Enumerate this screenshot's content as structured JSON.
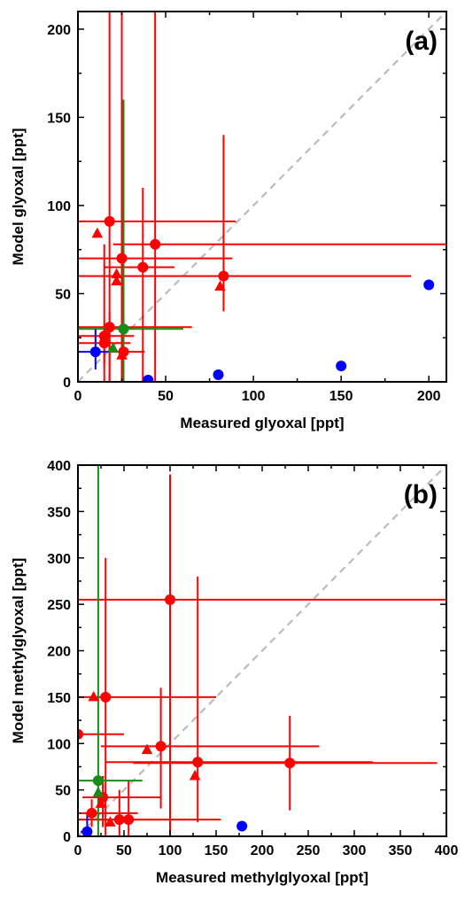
{
  "colors": {
    "red": "#ff0000",
    "green": "#1a8a1a",
    "blue": "#0000ff",
    "diag": "#bbbbbb"
  },
  "chart_data": [
    {
      "type": "scatter",
      "panel_label": "(a)",
      "xlabel": "Measured glyoxal [ppt]",
      "ylabel": "Model glyoxal [ppt]",
      "xlim": [
        0,
        210
      ],
      "ylim": [
        0,
        210
      ],
      "xticks": [
        0,
        50,
        100,
        150,
        200
      ],
      "yticks": [
        0,
        50,
        100,
        150,
        200
      ],
      "xticklabels": [
        "0",
        "50",
        "100",
        "150",
        "200"
      ],
      "yticklabels": [
        "0",
        "50",
        "100",
        "150",
        "200"
      ],
      "diagonal": "1:1 dashed line",
      "grid": false,
      "series": [
        {
          "color": "red",
          "marker": "circle",
          "points": [
            {
              "x": 18,
              "y": 91,
              "xerr": [
                0,
                90
              ],
              "yerr": [
                0,
                210
              ]
            },
            {
              "x": 44,
              "y": 78,
              "xerr": [
                20,
                210
              ],
              "yerr": [
                0,
                210
              ]
            },
            {
              "x": 25,
              "y": 70,
              "xerr": [
                0,
                88
              ],
              "yerr": [
                0,
                210
              ]
            },
            {
              "x": 37,
              "y": 65,
              "xerr": [
                15,
                55
              ],
              "yerr": [
                0,
                110
              ]
            },
            {
              "x": 83,
              "y": 60,
              "xerr": [
                0,
                190
              ],
              "yerr": [
                40,
                140
              ]
            },
            {
              "x": 18,
              "y": 31,
              "xerr": [
                0,
                65
              ],
              "yerr": [
                0,
                40
              ]
            },
            {
              "x": 15,
              "y": 26,
              "xerr": [
                0,
                32
              ],
              "yerr": [
                0,
                78
              ]
            },
            {
              "x": 15,
              "y": 22,
              "xerr": [
                0,
                30
              ],
              "yerr": [
                10,
                30
              ]
            },
            {
              "x": 26,
              "y": 17,
              "xerr": [
                18,
                38
              ],
              "yerr": [
                0,
                30
              ]
            }
          ]
        },
        {
          "color": "red",
          "marker": "triangle",
          "points": [
            {
              "x": 11,
              "y": 84
            },
            {
              "x": 22,
              "y": 61
            },
            {
              "x": 22,
              "y": 57
            },
            {
              "x": 81,
              "y": 54
            },
            {
              "x": 25,
              "y": 15
            }
          ]
        },
        {
          "color": "green",
          "marker": "circle",
          "points": [
            {
              "x": 26,
              "y": 30,
              "xerr": [
                0,
                60
              ],
              "yerr": [
                0,
                160
              ]
            }
          ]
        },
        {
          "color": "green",
          "marker": "triangle",
          "points": [
            {
              "x": 20,
              "y": 19
            }
          ]
        },
        {
          "color": "blue",
          "marker": "circle",
          "points": [
            {
              "x": 40,
              "y": 1
            },
            {
              "x": 80,
              "y": 4
            },
            {
              "x": 150,
              "y": 9
            },
            {
              "x": 200,
              "y": 55
            },
            {
              "x": 10,
              "y": 17,
              "xerr": [
                0,
                18
              ],
              "yerr": [
                7,
                30
              ]
            }
          ]
        }
      ]
    },
    {
      "type": "scatter",
      "panel_label": "(b)",
      "xlabel": "Measured methylglyoxal [ppt]",
      "ylabel": "Model methylglyoxal [ppt]",
      "xlim": [
        0,
        400
      ],
      "ylim": [
        0,
        400
      ],
      "xticks": [
        0,
        50,
        100,
        150,
        200,
        250,
        300,
        350,
        400
      ],
      "yticks": [
        0,
        50,
        100,
        150,
        200,
        250,
        300,
        350,
        400
      ],
      "xticklabels": [
        "0",
        "50",
        "100",
        "150",
        "200",
        "250",
        "300",
        "350",
        "400"
      ],
      "yticklabels": [
        "0",
        "50",
        "100",
        "150",
        "200",
        "250",
        "300",
        "350",
        "400"
      ],
      "diagonal": "1:1 dashed line",
      "grid": false,
      "series": [
        {
          "color": "red",
          "marker": "circle",
          "points": [
            {
              "x": 100,
              "y": 255,
              "xerr": [
                0,
                400
              ],
              "yerr": [
                0,
                390
              ]
            },
            {
              "x": 30,
              "y": 150,
              "xerr": [
                0,
                150
              ],
              "yerr": [
                0,
                300
              ]
            },
            {
              "x": 0,
              "y": 110,
              "xerr": [
                0,
                50
              ],
              "yerr": [
                0,
                150
              ]
            },
            {
              "x": 90,
              "y": 97,
              "xerr": [
                25,
                262
              ],
              "yerr": [
                30,
                160
              ]
            },
            {
              "x": 130,
              "y": 80,
              "xerr": [
                30,
                320
              ],
              "yerr": [
                15,
                280
              ]
            },
            {
              "x": 230,
              "y": 79,
              "xerr": [
                60,
                390
              ],
              "yerr": [
                28,
                130
              ]
            },
            {
              "x": 27,
              "y": 42,
              "xerr": [
                5,
                90
              ],
              "yerr": [
                10,
                65
              ]
            },
            {
              "x": 15,
              "y": 25,
              "xerr": [
                3,
                65
              ],
              "yerr": [
                10,
                40
              ]
            },
            {
              "x": 45,
              "y": 18,
              "xerr": [
                0,
                130
              ],
              "yerr": [
                0,
                50
              ]
            },
            {
              "x": 55,
              "y": 18,
              "xerr": [
                0,
                155
              ],
              "yerr": [
                0,
                60
              ]
            }
          ]
        },
        {
          "color": "red",
          "marker": "triangle",
          "points": [
            {
              "x": 17,
              "y": 150
            },
            {
              "x": 75,
              "y": 93
            },
            {
              "x": 127,
              "y": 65
            },
            {
              "x": 25,
              "y": 35
            },
            {
              "x": 35,
              "y": 15
            }
          ]
        },
        {
          "color": "green",
          "marker": "circle",
          "points": [
            {
              "x": 22,
              "y": 60,
              "xerr": [
                0,
                70
              ],
              "yerr": [
                0,
                400
              ]
            }
          ]
        },
        {
          "color": "green",
          "marker": "triangle",
          "points": [
            {
              "x": 22,
              "y": 47
            }
          ]
        },
        {
          "color": "blue",
          "marker": "circle",
          "points": [
            {
              "x": 10,
              "y": 5,
              "xerr": [
                3,
                15
              ],
              "yerr": [
                0,
                25
              ]
            },
            {
              "x": 178,
              "y": 11
            }
          ]
        }
      ]
    }
  ]
}
